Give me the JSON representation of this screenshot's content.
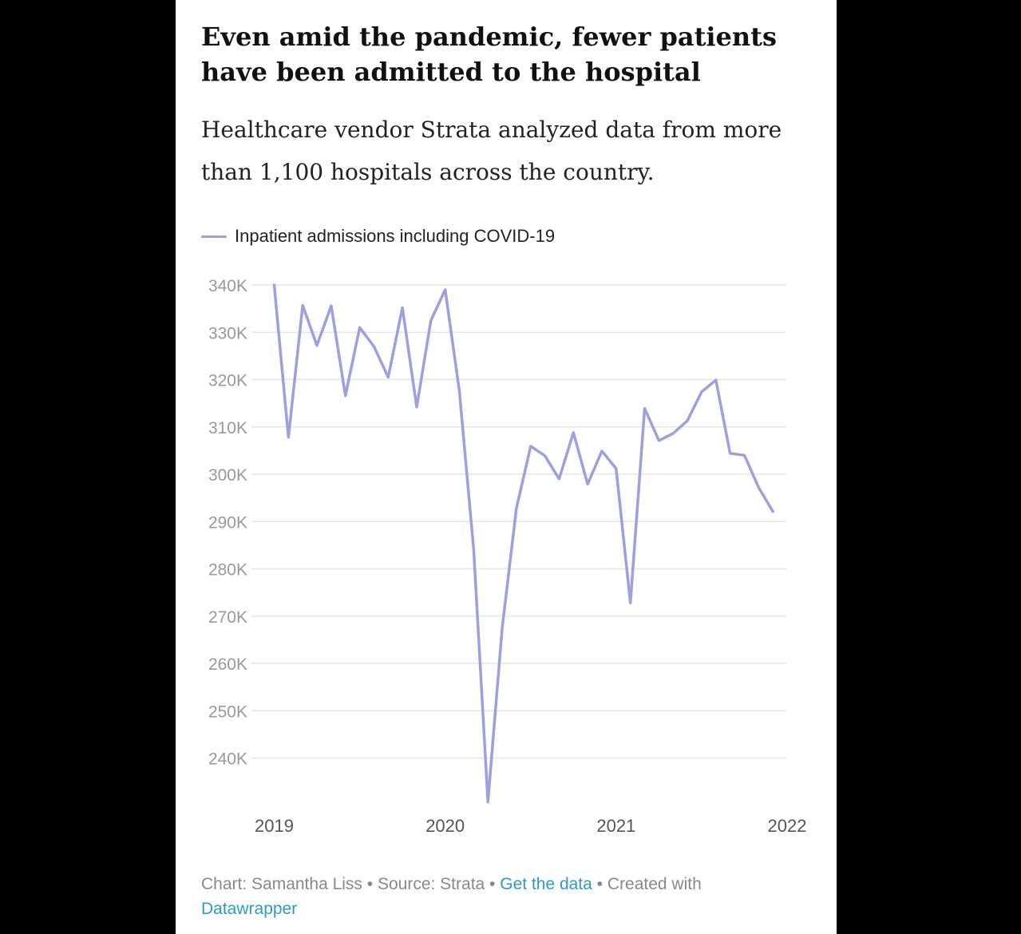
{
  "title": "Even amid the pandemic, fewer patients have been admitted to the hospital",
  "subtitle": "Healthcare vendor Strata analyzed data from more than 1,100 hospitals across the country.",
  "footer": {
    "chart_by": "Chart: Samantha Liss",
    "sep1": " • ",
    "source": "Source: Strata",
    "sep2": " • ",
    "get_data": "Get the data",
    "sep3": " • ",
    "created_with": "Created with ",
    "tool": "Datawrapper"
  },
  "chart_data": {
    "type": "line",
    "legend_position": "top-left",
    "grid": true,
    "series_color": "#9f9fdf",
    "ylim": [
      230000,
      340000
    ],
    "y_ticks": [
      340000,
      330000,
      320000,
      310000,
      300000,
      290000,
      280000,
      270000,
      260000,
      250000,
      240000
    ],
    "y_tick_labels": [
      "340K",
      "330K",
      "320K",
      "310K",
      "300K",
      "290K",
      "280K",
      "270K",
      "260K",
      "250K",
      "240K"
    ],
    "x_ticks": [
      2019,
      2020,
      2021,
      2022
    ],
    "x_tick_labels": [
      "2019",
      "2020",
      "2021",
      "2022"
    ],
    "series": [
      {
        "name": "Inpatient admissions including COVID-19",
        "x": [
          "2019-01",
          "2019-02",
          "2019-03",
          "2019-04",
          "2019-05",
          "2019-06",
          "2019-07",
          "2019-08",
          "2019-09",
          "2019-10",
          "2019-11",
          "2019-12",
          "2020-01",
          "2020-02",
          "2020-03",
          "2020-04",
          "2020-05",
          "2020-06",
          "2020-07",
          "2020-08",
          "2020-09",
          "2020-10",
          "2020-11",
          "2020-12",
          "2021-01",
          "2021-02",
          "2021-03",
          "2021-04",
          "2021-05",
          "2021-06",
          "2021-07",
          "2021-08",
          "2021-09",
          "2021-10",
          "2021-11",
          "2021-12"
        ],
        "values": [
          340000,
          307800,
          335700,
          327200,
          335600,
          316600,
          331000,
          327000,
          320500,
          335200,
          314200,
          332500,
          339000,
          317500,
          284000,
          230700,
          267500,
          292800,
          305900,
          303900,
          299000,
          308800,
          297900,
          304900,
          301200,
          272800,
          313900,
          307100,
          308600,
          311300,
          317400,
          319900,
          304400,
          304000,
          297200,
          292100
        ]
      }
    ]
  }
}
